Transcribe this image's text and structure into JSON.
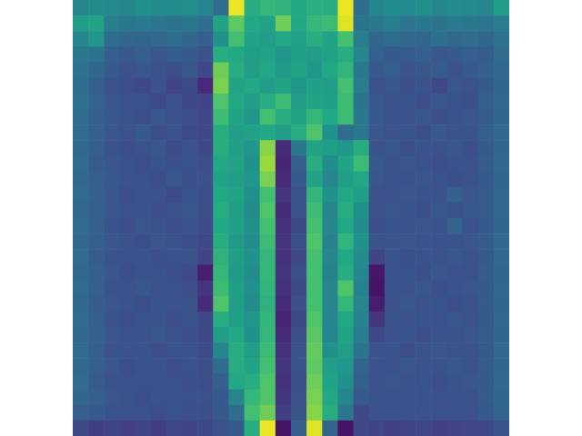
{
  "chart_data": {
    "type": "heatmap",
    "zlim": [
      0,
      1
    ],
    "tick_labels": false,
    "cells": [
      [
        0.45,
        0.48,
        0.47,
        0.46,
        0.5,
        0.48,
        0.47,
        0.49,
        0.45,
        0.35,
        0.97,
        0.62,
        0.66,
        0.64,
        0.6,
        0.63,
        0.62,
        0.97,
        0.36,
        0.46,
        0.48,
        0.47,
        0.49,
        0.46,
        0.48,
        0.47,
        0.45,
        0.55
      ],
      [
        0.55,
        0.58,
        0.42,
        0.4,
        0.41,
        0.39,
        0.38,
        0.4,
        0.36,
        0.58,
        0.75,
        0.6,
        0.58,
        0.78,
        0.6,
        0.66,
        0.68,
        0.95,
        0.38,
        0.4,
        0.42,
        0.39,
        0.4,
        0.38,
        0.41,
        0.4,
        0.39,
        0.42
      ],
      [
        0.45,
        0.52,
        0.35,
        0.33,
        0.32,
        0.34,
        0.35,
        0.33,
        0.3,
        0.5,
        0.7,
        0.58,
        0.55,
        0.6,
        0.57,
        0.62,
        0.58,
        0.7,
        0.42,
        0.33,
        0.35,
        0.34,
        0.33,
        0.36,
        0.34,
        0.35,
        0.33,
        0.38
      ],
      [
        0.4,
        0.38,
        0.3,
        0.28,
        0.3,
        0.27,
        0.29,
        0.28,
        0.25,
        0.62,
        0.6,
        0.55,
        0.58,
        0.52,
        0.56,
        0.55,
        0.57,
        0.62,
        0.45,
        0.3,
        0.28,
        0.29,
        0.3,
        0.27,
        0.28,
        0.3,
        0.29,
        0.35
      ],
      [
        0.38,
        0.33,
        0.28,
        0.25,
        0.27,
        0.26,
        0.24,
        0.27,
        0.22,
        0.78,
        0.62,
        0.55,
        0.6,
        0.54,
        0.58,
        0.52,
        0.6,
        0.65,
        0.4,
        0.28,
        0.3,
        0.26,
        0.27,
        0.29,
        0.25,
        0.28,
        0.3,
        0.34
      ],
      [
        0.36,
        0.3,
        0.26,
        0.24,
        0.22,
        0.25,
        0.2,
        0.23,
        0.12,
        0.8,
        0.58,
        0.6,
        0.55,
        0.58,
        0.52,
        0.56,
        0.55,
        0.7,
        0.42,
        0.25,
        0.27,
        0.24,
        0.26,
        0.22,
        0.27,
        0.25,
        0.28,
        0.33
      ],
      [
        0.37,
        0.32,
        0.27,
        0.25,
        0.26,
        0.23,
        0.25,
        0.22,
        0.2,
        0.72,
        0.6,
        0.55,
        0.62,
        0.68,
        0.55,
        0.58,
        0.56,
        0.68,
        0.38,
        0.27,
        0.25,
        0.26,
        0.24,
        0.27,
        0.26,
        0.24,
        0.3,
        0.34
      ],
      [
        0.35,
        0.3,
        0.28,
        0.26,
        0.24,
        0.27,
        0.25,
        0.24,
        0.22,
        0.68,
        0.58,
        0.52,
        0.7,
        0.62,
        0.58,
        0.66,
        0.6,
        0.68,
        0.4,
        0.28,
        0.26,
        0.25,
        0.27,
        0.24,
        0.26,
        0.27,
        0.29,
        0.33
      ],
      [
        0.35,
        0.31,
        0.27,
        0.25,
        0.28,
        0.24,
        0.26,
        0.23,
        0.22,
        0.62,
        0.55,
        0.58,
        0.6,
        0.55,
        0.62,
        0.72,
        0.5,
        0.35,
        0.4,
        0.27,
        0.25,
        0.26,
        0.24,
        0.28,
        0.25,
        0.26,
        0.3,
        0.34
      ],
      [
        0.34,
        0.3,
        0.26,
        0.24,
        0.25,
        0.27,
        0.23,
        0.25,
        0.22,
        0.62,
        0.56,
        0.52,
        0.82,
        0.12,
        0.4,
        0.58,
        0.55,
        0.52,
        0.62,
        0.26,
        0.27,
        0.24,
        0.26,
        0.25,
        0.27,
        0.24,
        0.28,
        0.33
      ],
      [
        0.35,
        0.29,
        0.27,
        0.25,
        0.24,
        0.26,
        0.24,
        0.26,
        0.24,
        0.6,
        0.58,
        0.5,
        0.85,
        0.1,
        0.3,
        0.62,
        0.48,
        0.58,
        0.68,
        0.28,
        0.25,
        0.27,
        0.25,
        0.24,
        0.26,
        0.25,
        0.29,
        0.34
      ],
      [
        0.34,
        0.3,
        0.28,
        0.26,
        0.25,
        0.24,
        0.27,
        0.24,
        0.25,
        0.58,
        0.55,
        0.52,
        0.8,
        0.12,
        0.28,
        0.58,
        0.45,
        0.55,
        0.6,
        0.27,
        0.26,
        0.25,
        0.27,
        0.26,
        0.24,
        0.26,
        0.28,
        0.33
      ],
      [
        0.35,
        0.31,
        0.27,
        0.24,
        0.26,
        0.25,
        0.23,
        0.26,
        0.24,
        0.6,
        0.58,
        0.5,
        0.7,
        0.15,
        0.25,
        0.65,
        0.5,
        0.6,
        0.55,
        0.26,
        0.25,
        0.27,
        0.26,
        0.25,
        0.3,
        0.27,
        0.29,
        0.34
      ],
      [
        0.34,
        0.3,
        0.27,
        0.25,
        0.26,
        0.24,
        0.25,
        0.27,
        0.24,
        0.62,
        0.55,
        0.48,
        0.72,
        0.12,
        0.25,
        0.68,
        0.45,
        0.62,
        0.5,
        0.25,
        0.27,
        0.26,
        0.24,
        0.27,
        0.25,
        0.28,
        0.29,
        0.34
      ],
      [
        0.35,
        0.31,
        0.26,
        0.24,
        0.27,
        0.26,
        0.24,
        0.25,
        0.23,
        0.6,
        0.56,
        0.5,
        0.7,
        0.14,
        0.22,
        0.7,
        0.46,
        0.6,
        0.48,
        0.24,
        0.26,
        0.25,
        0.27,
        0.25,
        0.32,
        0.26,
        0.28,
        0.33
      ],
      [
        0.34,
        0.3,
        0.27,
        0.25,
        0.24,
        0.27,
        0.25,
        0.24,
        0.22,
        0.62,
        0.54,
        0.48,
        0.68,
        0.15,
        0.24,
        0.72,
        0.44,
        0.65,
        0.5,
        0.26,
        0.25,
        0.27,
        0.25,
        0.26,
        0.25,
        0.27,
        0.29,
        0.34
      ],
      [
        0.35,
        0.29,
        0.26,
        0.25,
        0.26,
        0.24,
        0.26,
        0.25,
        0.2,
        0.64,
        0.55,
        0.5,
        0.66,
        0.14,
        0.22,
        0.7,
        0.45,
        0.6,
        0.48,
        0.2,
        0.26,
        0.24,
        0.26,
        0.25,
        0.27,
        0.25,
        0.28,
        0.34
      ],
      [
        0.34,
        0.3,
        0.27,
        0.24,
        0.25,
        0.26,
        0.24,
        0.23,
        0.08,
        0.66,
        0.54,
        0.48,
        0.66,
        0.15,
        0.24,
        0.7,
        0.44,
        0.62,
        0.46,
        0.06,
        0.25,
        0.26,
        0.24,
        0.27,
        0.25,
        0.26,
        0.29,
        0.33
      ],
      [
        0.35,
        0.3,
        0.26,
        0.25,
        0.27,
        0.25,
        0.25,
        0.24,
        0.15,
        0.68,
        0.56,
        0.5,
        0.65,
        0.14,
        0.22,
        0.7,
        0.45,
        0.72,
        0.44,
        0.05,
        0.26,
        0.25,
        0.27,
        0.24,
        0.26,
        0.27,
        0.28,
        0.34
      ],
      [
        0.34,
        0.29,
        0.27,
        0.26,
        0.24,
        0.26,
        0.25,
        0.25,
        0.12,
        0.72,
        0.55,
        0.48,
        0.64,
        0.12,
        0.24,
        0.7,
        0.46,
        0.66,
        0.45,
        0.08,
        0.25,
        0.27,
        0.25,
        0.26,
        0.24,
        0.26,
        0.29,
        0.33
      ],
      [
        0.35,
        0.3,
        0.26,
        0.24,
        0.26,
        0.25,
        0.24,
        0.26,
        0.22,
        0.62,
        0.56,
        0.52,
        0.65,
        0.1,
        0.22,
        0.72,
        0.45,
        0.6,
        0.44,
        0.15,
        0.26,
        0.25,
        0.26,
        0.25,
        0.27,
        0.25,
        0.28,
        0.34
      ],
      [
        0.34,
        0.31,
        0.27,
        0.25,
        0.25,
        0.27,
        0.25,
        0.24,
        0.22,
        0.55,
        0.6,
        0.5,
        0.66,
        0.12,
        0.24,
        0.74,
        0.46,
        0.58,
        0.42,
        0.22,
        0.25,
        0.26,
        0.24,
        0.26,
        0.25,
        0.27,
        0.29,
        0.33
      ],
      [
        0.35,
        0.3,
        0.26,
        0.25,
        0.26,
        0.24,
        0.26,
        0.25,
        0.23,
        0.45,
        0.62,
        0.55,
        0.68,
        0.14,
        0.25,
        0.76,
        0.5,
        0.55,
        0.38,
        0.25,
        0.26,
        0.24,
        0.26,
        0.27,
        0.25,
        0.26,
        0.28,
        0.34
      ],
      [
        0.34,
        0.3,
        0.27,
        0.24,
        0.25,
        0.26,
        0.24,
        0.26,
        0.24,
        0.35,
        0.62,
        0.58,
        0.7,
        0.15,
        0.26,
        0.75,
        0.55,
        0.52,
        0.32,
        0.26,
        0.25,
        0.27,
        0.25,
        0.26,
        0.27,
        0.25,
        0.29,
        0.33
      ],
      [
        0.35,
        0.29,
        0.26,
        0.25,
        0.26,
        0.25,
        0.25,
        0.24,
        0.24,
        0.3,
        0.6,
        0.62,
        0.72,
        0.14,
        0.24,
        0.78,
        0.58,
        0.5,
        0.3,
        0.25,
        0.27,
        0.25,
        0.26,
        0.24,
        0.26,
        0.27,
        0.28,
        0.34
      ],
      [
        0.33,
        0.3,
        0.27,
        0.26,
        0.24,
        0.26,
        0.25,
        0.25,
        0.25,
        0.28,
        0.45,
        0.66,
        0.72,
        0.16,
        0.25,
        0.8,
        0.6,
        0.45,
        0.28,
        0.26,
        0.25,
        0.26,
        0.25,
        0.26,
        0.25,
        0.26,
        0.29,
        0.33
      ],
      [
        0.3,
        0.28,
        0.26,
        0.25,
        0.25,
        0.24,
        0.25,
        0.24,
        0.24,
        0.28,
        0.35,
        0.7,
        0.78,
        0.18,
        0.26,
        0.82,
        0.62,
        0.4,
        0.22,
        0.25,
        0.26,
        0.25,
        0.26,
        0.25,
        0.26,
        0.25,
        0.28,
        0.32
      ],
      [
        0.22,
        0.18,
        0.2,
        0.19,
        0.2,
        0.18,
        0.21,
        0.2,
        0.22,
        0.25,
        0.28,
        0.62,
        0.97,
        0.05,
        0.3,
        0.95,
        0.32,
        0.05,
        0.22,
        0.2,
        0.19,
        0.2,
        0.21,
        0.19,
        0.2,
        0.21,
        0.22,
        0.26
      ]
    ]
  }
}
